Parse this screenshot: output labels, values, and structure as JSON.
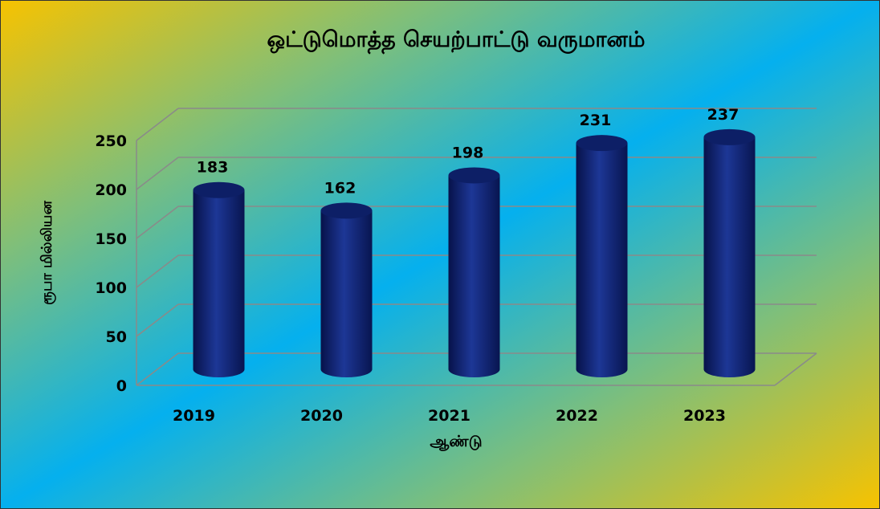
{
  "chart_data": {
    "type": "bar3d",
    "title": "ஒட்டுமொத்த செயற்பாட்டு வருமானம்",
    "x_label": "ஆண்டு",
    "y_label": "ரூபா மில்லியன",
    "categories": [
      "2019",
      "2020",
      "2021",
      "2022",
      "2023"
    ],
    "values": [
      183,
      162,
      198,
      231,
      237
    ],
    "color": "#0d1f66",
    "ylim": [
      0,
      250
    ],
    "yticks": [
      0,
      50,
      100,
      150,
      200,
      250
    ],
    "grid": true
  }
}
